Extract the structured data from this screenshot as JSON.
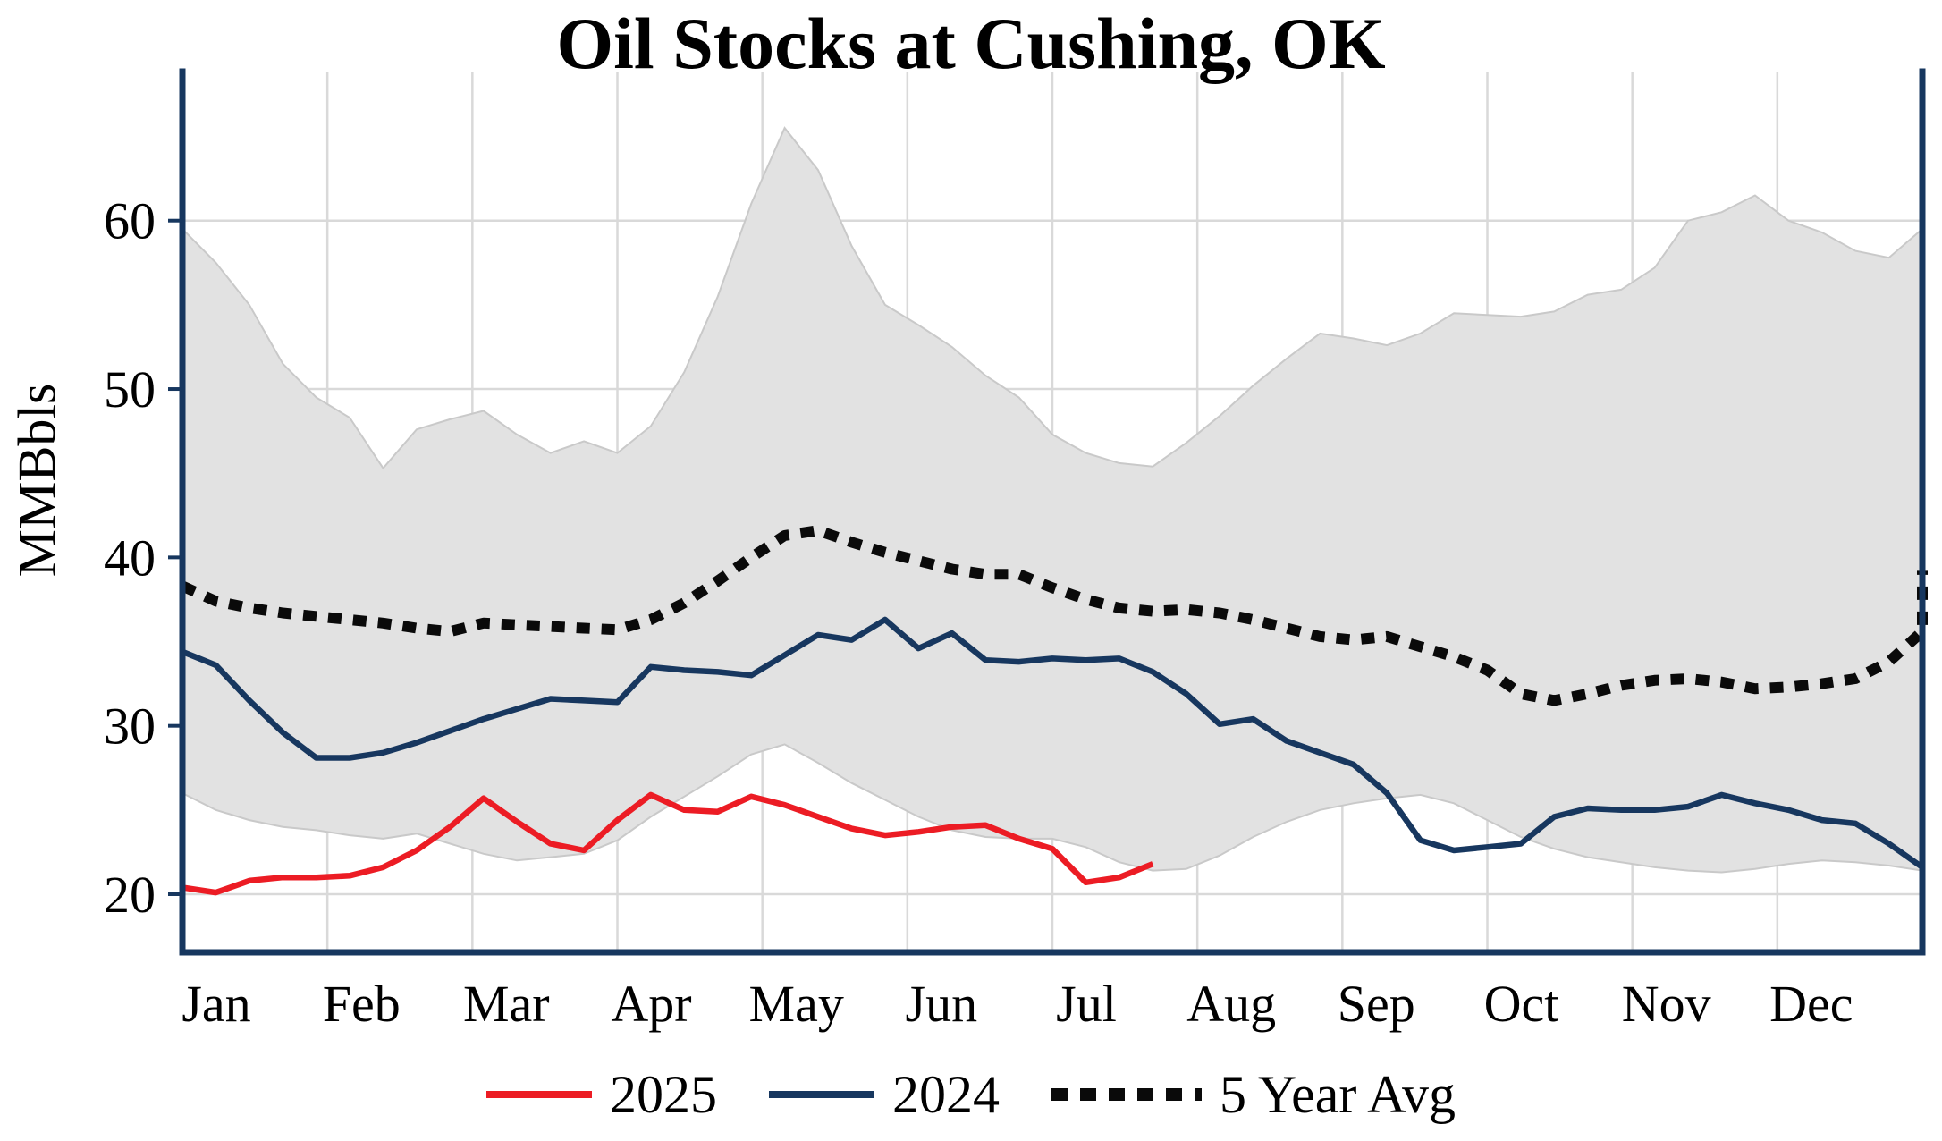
{
  "chart": {
    "title": "Oil Stocks at Cushing, OK",
    "ylabel": "MMBbls"
  },
  "legend": {
    "items": [
      {
        "label": "2025"
      },
      {
        "label": "2024"
      },
      {
        "label": "5 Year Avg"
      }
    ]
  },
  "chart_data": {
    "type": "line",
    "title": "Oil Stocks at Cushing, OK",
    "xlabel": "",
    "ylabel": "MMBbls",
    "x_unit": "weeks",
    "weeks_per_year": 52,
    "x_tick_labels": [
      "Jan",
      "Feb",
      "Mar",
      "Apr",
      "May",
      "Jun",
      "Jul",
      "Aug",
      "Sep",
      "Oct",
      "Nov",
      "Dec"
    ],
    "y_ticks": [
      20,
      30,
      40,
      50,
      60
    ],
    "ylim": [
      16.5,
      69
    ],
    "grid": true,
    "legend_position": "bottom",
    "colors": {
      "red": "#ec1c24",
      "navy": "#17375f",
      "band_fill": "#e2e2e2",
      "band_edge": "#c9c9c9",
      "grid": "#d9d9d9",
      "axis": "#17375f",
      "avg": "#0a0a0a"
    },
    "band": {
      "name": "5-year range",
      "upper": [
        59.5,
        57.5,
        55.0,
        51.5,
        49.5,
        48.3,
        45.3,
        47.6,
        48.2,
        48.7,
        47.3,
        46.2,
        46.9,
        46.2,
        47.8,
        51.0,
        55.5,
        61.0,
        65.5,
        63.0,
        58.5,
        55.0,
        53.8,
        52.5,
        50.8,
        49.5,
        47.3,
        46.2,
        45.6,
        45.4,
        46.8,
        48.4,
        50.2,
        51.8,
        53.3,
        53.0,
        52.6,
        53.3,
        54.5,
        54.4,
        54.3,
        54.6,
        55.6,
        55.9,
        57.2,
        60.0,
        60.5,
        61.5,
        60.0,
        59.3,
        58.2,
        57.8,
        59.5
      ],
      "lower": [
        26.0,
        25.0,
        24.4,
        24.0,
        23.8,
        23.5,
        23.3,
        23.6,
        23.0,
        22.4,
        22.0,
        22.2,
        22.4,
        23.2,
        24.6,
        25.8,
        27.0,
        28.3,
        28.9,
        27.8,
        26.6,
        25.6,
        24.6,
        23.8,
        23.4,
        23.3,
        23.3,
        22.8,
        21.9,
        21.4,
        21.5,
        22.3,
        23.4,
        24.3,
        25.0,
        25.4,
        25.7,
        25.9,
        25.4,
        24.4,
        23.4,
        22.7,
        22.2,
        21.9,
        21.6,
        21.4,
        21.3,
        21.5,
        21.8,
        22.0,
        21.9,
        21.7,
        21.4
      ]
    },
    "series": [
      {
        "name": "2025",
        "color": "#ec1c24",
        "style": "solid",
        "values": [
          20.4,
          20.1,
          20.8,
          21.0,
          21.0,
          21.1,
          21.6,
          22.6,
          24.0,
          25.7,
          24.3,
          23.0,
          22.6,
          24.4,
          25.9,
          25.0,
          24.9,
          25.8,
          25.3,
          24.6,
          23.9,
          23.5,
          23.7,
          24.0,
          24.1,
          23.3,
          22.7,
          20.7,
          21.0,
          21.8
        ]
      },
      {
        "name": "2024",
        "color": "#17375f",
        "style": "solid",
        "values": [
          34.4,
          33.6,
          31.5,
          29.6,
          28.1,
          28.1,
          28.4,
          29.0,
          29.7,
          30.4,
          31.0,
          31.6,
          31.5,
          31.4,
          33.5,
          33.3,
          33.2,
          33.0,
          34.2,
          35.4,
          35.1,
          36.3,
          34.6,
          35.5,
          33.9,
          33.8,
          34.0,
          33.9,
          34.0,
          33.2,
          31.9,
          30.1,
          30.4,
          29.1,
          28.4,
          27.7,
          26.0,
          23.2,
          22.6,
          22.8,
          23.0,
          24.6,
          25.1,
          25.0,
          25.0,
          25.2,
          25.9,
          25.4,
          25.0,
          24.4,
          24.2,
          23.0,
          21.6
        ]
      },
      {
        "name": "5 Year Avg",
        "color": "#0a0a0a",
        "style": "dotted",
        "values": [
          38.3,
          37.4,
          37.0,
          36.7,
          36.5,
          36.3,
          36.1,
          35.8,
          35.6,
          36.1,
          36.0,
          35.9,
          35.8,
          35.7,
          36.3,
          37.3,
          38.6,
          40.0,
          41.3,
          41.6,
          40.9,
          40.3,
          39.8,
          39.3,
          39.0,
          39.0,
          38.2,
          37.5,
          37.0,
          36.8,
          36.9,
          36.7,
          36.3,
          35.8,
          35.3,
          35.1,
          35.3,
          34.7,
          34.1,
          33.3,
          31.9,
          31.5,
          31.9,
          32.4,
          32.7,
          32.8,
          32.6,
          32.2,
          32.3,
          32.5,
          32.8,
          33.8,
          35.6
        ],
        "edge_jump_value": 39.2
      }
    ]
  }
}
